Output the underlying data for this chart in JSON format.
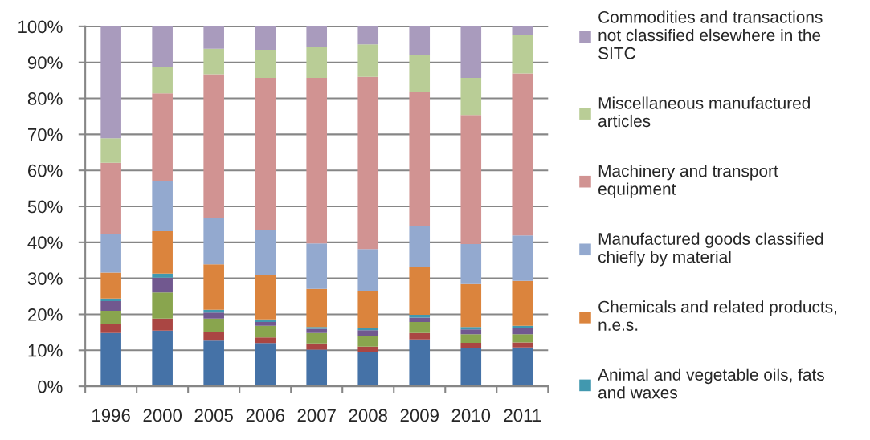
{
  "chart_data": {
    "type": "bar",
    "stacked": true,
    "categories": [
      "1996",
      "2000",
      "2005",
      "2006",
      "2007",
      "2008",
      "2009",
      "2010",
      "2011"
    ],
    "series": [
      {
        "color": "#4572a7",
        "values": [
          14.8,
          15.5,
          12.7,
          12.0,
          10.2,
          9.6,
          13.0,
          10.6,
          10.8
        ]
      },
      {
        "color": "#aa4643",
        "values": [
          2.5,
          3.3,
          2.4,
          1.6,
          1.7,
          1.4,
          1.8,
          1.5,
          1.4
        ]
      },
      {
        "color": "#89a54e",
        "values": [
          3.7,
          7.3,
          3.7,
          3.2,
          2.9,
          3.1,
          3.1,
          2.4,
          2.3
        ]
      },
      {
        "color": "#71588f",
        "values": [
          2.7,
          4.1,
          1.7,
          1.1,
          1.2,
          1.5,
          1.2,
          1.3,
          1.7
        ]
      },
      {
        "name": "Animal and vegetable oils, fats\nand waxes",
        "color": "#4198af",
        "values": [
          0.7,
          1.1,
          0.8,
          0.7,
          0.5,
          0.7,
          0.8,
          0.7,
          0.6
        ]
      },
      {
        "name": "Chemicals and related products,\nn.e.s.",
        "color": "#db843d",
        "values": [
          7.2,
          11.8,
          12.6,
          12.2,
          10.6,
          10.1,
          13.2,
          11.9,
          12.5
        ]
      },
      {
        "name": "Manufactured goods classified\nchiefly by material",
        "color": "#93a9cf",
        "values": [
          10.7,
          13.9,
          13.0,
          12.6,
          12.6,
          11.7,
          11.5,
          11.1,
          12.6
        ]
      },
      {
        "name": "Machinery and transport\nequipment",
        "color": "#d19392",
        "values": [
          19.8,
          24.4,
          39.8,
          42.3,
          46.0,
          47.9,
          37.1,
          35.9,
          45.0
        ]
      },
      {
        "name": "Miscellaneous manufactured\narticles",
        "color": "#b9cd96",
        "values": [
          6.8,
          7.4,
          7.1,
          7.8,
          8.7,
          9.0,
          10.3,
          10.3,
          10.8
        ]
      },
      {
        "name": "Commodities and transactions\nnot classified elsewhere in the\nSITC",
        "color": "#a99bbd",
        "values": [
          31.1,
          11.2,
          6.2,
          6.5,
          5.6,
          5.0,
          8.0,
          14.3,
          2.3
        ]
      }
    ],
    "ylim": [
      0,
      100
    ],
    "yticks": [
      {
        "value": 0,
        "label": "0%"
      },
      {
        "value": 10,
        "label": "10%"
      },
      {
        "value": 20,
        "label": "20%"
      },
      {
        "value": 30,
        "label": "30%"
      },
      {
        "value": 40,
        "label": "40%"
      },
      {
        "value": 50,
        "label": "50%"
      },
      {
        "value": 60,
        "label": "60%"
      },
      {
        "value": 70,
        "label": "70%"
      },
      {
        "value": 80,
        "label": "80%"
      },
      {
        "value": 90,
        "label": "90%"
      },
      {
        "value": 100,
        "label": "100%"
      }
    ],
    "grid": "y",
    "legend": "right"
  }
}
